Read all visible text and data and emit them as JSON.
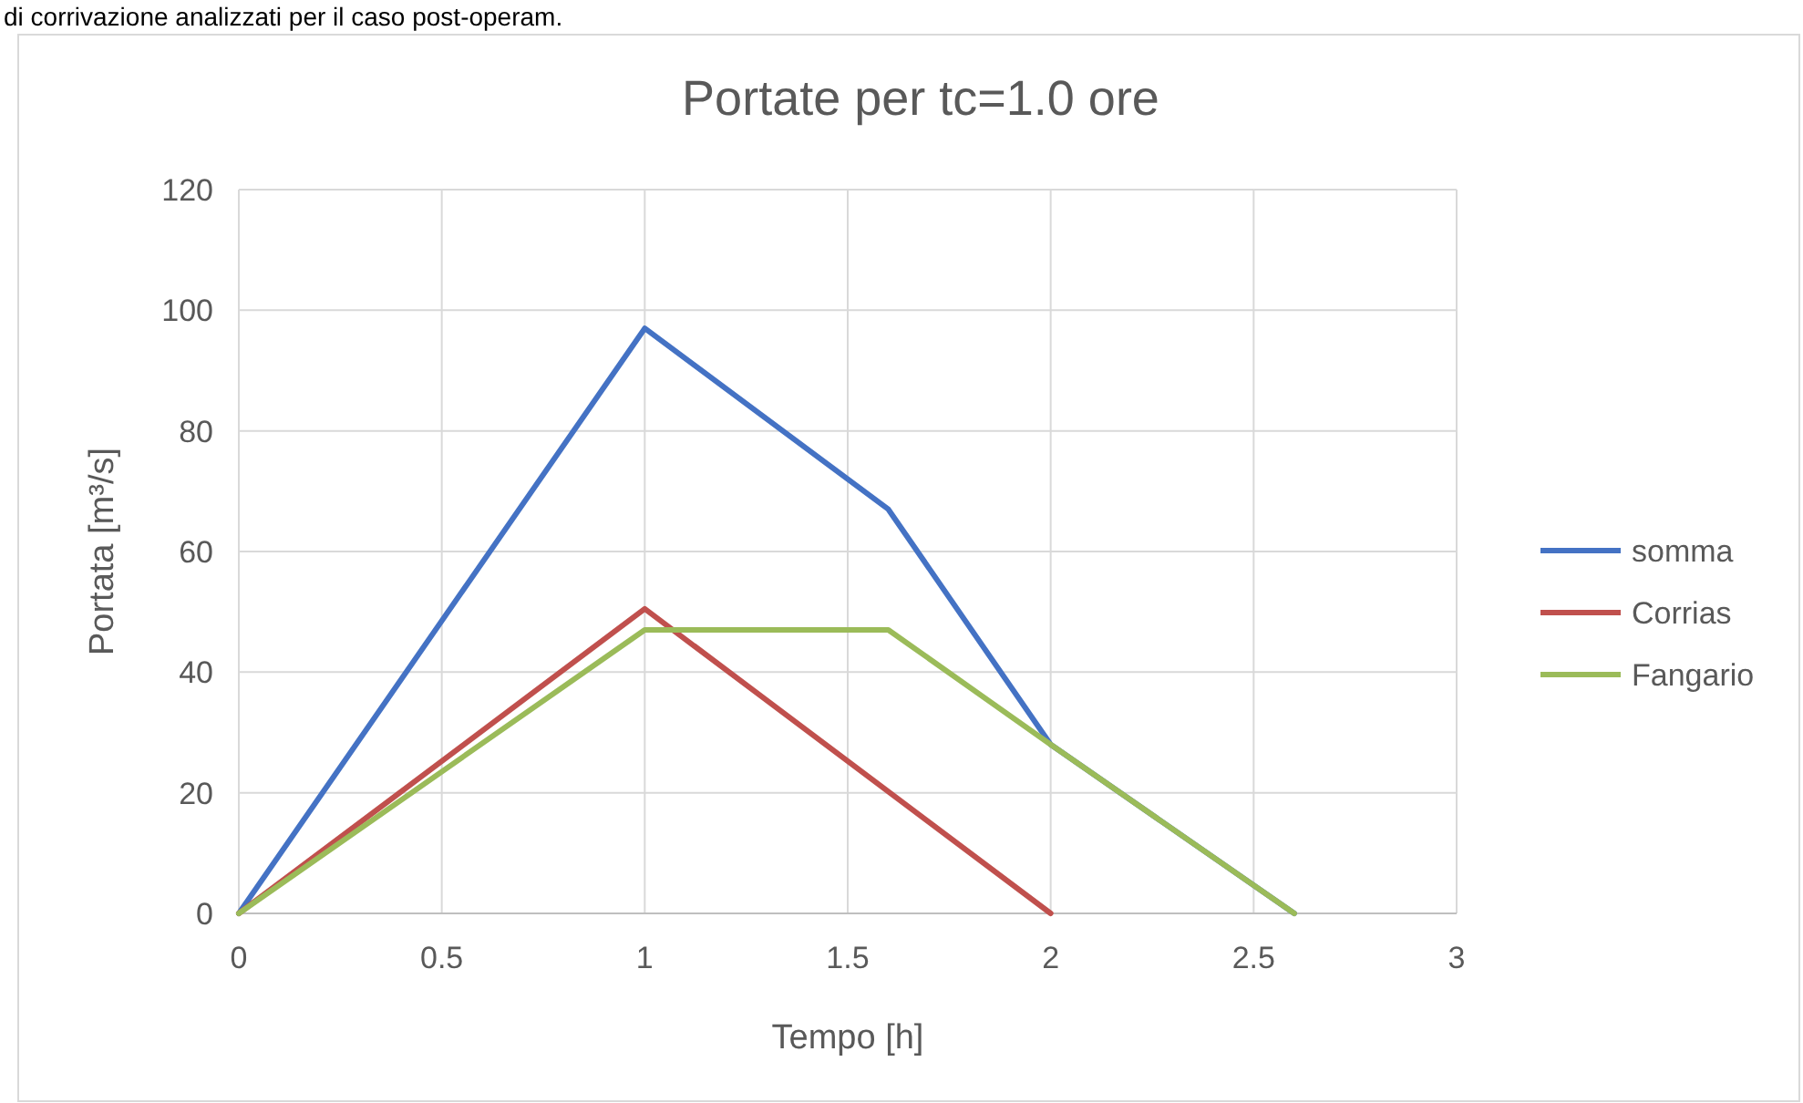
{
  "chart_data": {
    "type": "line",
    "title": "Portate per tc=1.0 ore",
    "xlabel": "Tempo [h]",
    "ylabel": "Portata [m³/s]",
    "annotations": [
      "di corrivazione analizzati per il caso post-operam."
    ],
    "xlim": [
      0,
      3
    ],
    "xticks": [
      0,
      0.5,
      1,
      1.5,
      2,
      2.5,
      3
    ],
    "ylim": [
      0,
      120
    ],
    "yticks": [
      0,
      20,
      40,
      60,
      80,
      100,
      120
    ],
    "grid": true,
    "legend": "right",
    "marker": "none",
    "line_style": "solid",
    "series": [
      {
        "name": "somma",
        "color": "#4472c4",
        "x": [
          0,
          1,
          1.6,
          2,
          2.6
        ],
        "values": [
          0,
          97,
          67,
          28,
          0
        ]
      },
      {
        "name": "Corrias",
        "color": "#c0504d",
        "x": [
          0,
          1,
          2
        ],
        "values": [
          0,
          50.5,
          0
        ]
      },
      {
        "name": "Fangario",
        "color": "#9bbb59",
        "x": [
          0,
          1,
          1.6,
          2,
          2.6
        ],
        "values": [
          0,
          47,
          47,
          28,
          0
        ]
      }
    ]
  }
}
